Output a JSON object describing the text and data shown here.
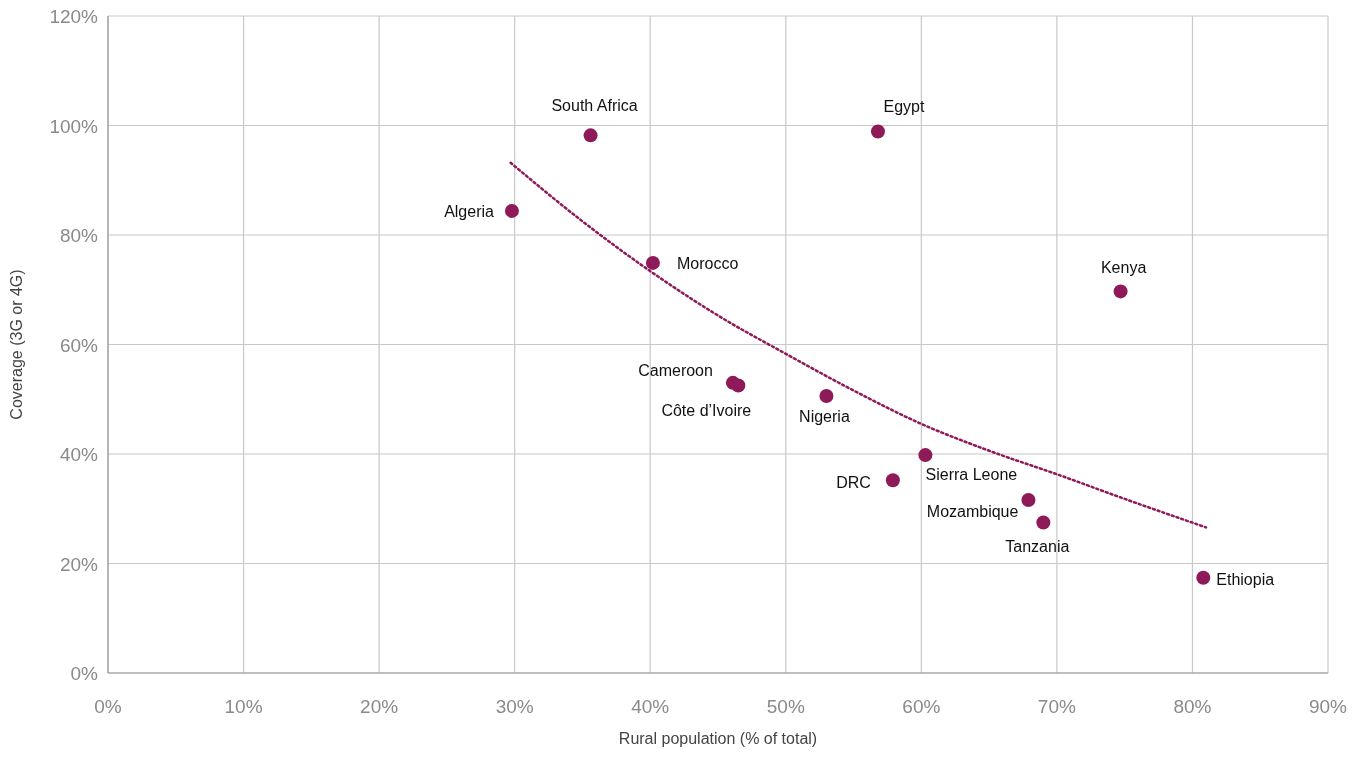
{
  "chart_data": {
    "type": "scatter",
    "xlabel": "Rural population (% of total)",
    "ylabel": "Coverage (3G or 4G)",
    "series": [
      {
        "color": "#8e1a5a",
        "marker": "circle",
        "x": [
          35.6,
          56.8,
          29.8,
          40.2,
          74.7,
          46.1,
          46.5,
          53.0,
          60.3,
          57.9,
          67.9,
          69.0,
          80.8
        ],
        "values": [
          98.2,
          98.9,
          84.4,
          74.9,
          69.7,
          53.0,
          52.5,
          50.6,
          39.8,
          35.2,
          31.6,
          27.5,
          17.4
        ]
      },
      {
        "type": "line",
        "color": "#8e1a5a",
        "marker": "none",
        "line_style": "dotted",
        "x": [
          29.7,
          35,
          40,
          45,
          50,
          55,
          60,
          65,
          70,
          75,
          81
        ],
        "values": [
          93.2,
          82.5,
          73.4,
          65.3,
          58.3,
          51.6,
          45.5,
          40.6,
          36.3,
          31.8,
          26.6
        ]
      }
    ],
    "annotations": [
      {
        "text": "South Africa",
        "x": 35.6,
        "y": 98.2
      },
      {
        "text": "Egypt",
        "x": 56.8,
        "y": 98.9
      },
      {
        "text": "Algeria",
        "x": 29.8,
        "y": 84.4
      },
      {
        "text": "Morocco",
        "x": 40.2,
        "y": 74.9
      },
      {
        "text": "Kenya",
        "x": 74.7,
        "y": 69.7
      },
      {
        "text": "Cameroon",
        "x": 46.1,
        "y": 53.0
      },
      {
        "text": "Côte d’Ivoire",
        "x": 46.5,
        "y": 52.5
      },
      {
        "text": "Nigeria",
        "x": 53.0,
        "y": 50.6
      },
      {
        "text": "Sierra Leone",
        "x": 60.3,
        "y": 39.8
      },
      {
        "text": "DRC",
        "x": 57.9,
        "y": 35.2
      },
      {
        "text": "Mozambique",
        "x": 67.9,
        "y": 31.6
      },
      {
        "text": "Tanzania",
        "x": 69.0,
        "y": 27.5
      },
      {
        "text": "Ethiopia",
        "x": 80.8,
        "y": 17.4
      }
    ],
    "xlim": [
      0,
      90
    ],
    "ylim": [
      0,
      120
    ],
    "xticks": [
      {
        "value": 0,
        "label": "0%"
      },
      {
        "value": 10,
        "label": "10%"
      },
      {
        "value": 20,
        "label": "20%"
      },
      {
        "value": 30,
        "label": "30%"
      },
      {
        "value": 40,
        "label": "40%"
      },
      {
        "value": 50,
        "label": "50%"
      },
      {
        "value": 60,
        "label": "60%"
      },
      {
        "value": 70,
        "label": "70%"
      },
      {
        "value": 80,
        "label": "80%"
      },
      {
        "value": 90,
        "label": "90%"
      }
    ],
    "yticks": [
      {
        "value": 0,
        "label": "0%"
      },
      {
        "value": 20,
        "label": "20%"
      },
      {
        "value": 40,
        "label": "40%"
      },
      {
        "value": 60,
        "label": "60%"
      },
      {
        "value": 80,
        "label": "80%"
      },
      {
        "value": 100,
        "label": "100%"
      },
      {
        "value": 120,
        "label": "120%"
      }
    ],
    "grid": true
  }
}
